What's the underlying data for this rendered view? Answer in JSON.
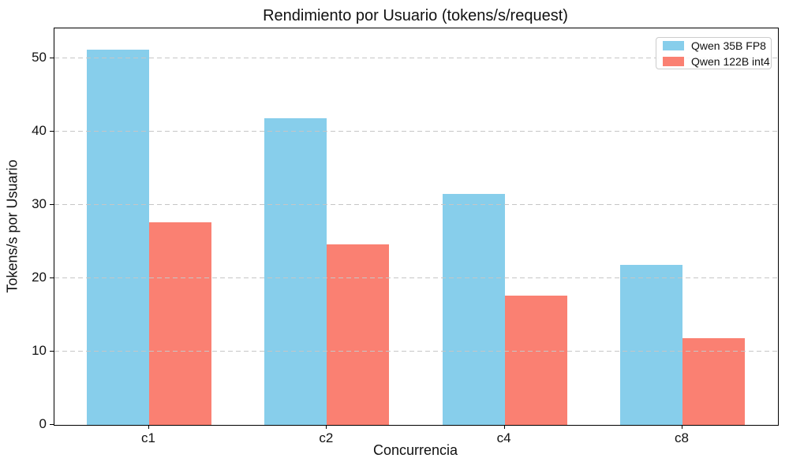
{
  "chart_data": {
    "type": "bar",
    "title": "Rendimiento por Usuario (tokens/s/request)",
    "xlabel": "Concurrencia",
    "ylabel": "Tokens/s por Usuario",
    "categories": [
      "c1",
      "c2",
      "c4",
      "c8"
    ],
    "series": [
      {
        "name": "Qwen 35B FP8",
        "color": "#87CEEB",
        "values": [
          51.2,
          41.8,
          31.5,
          21.8
        ]
      },
      {
        "name": "Qwen 122B int4",
        "color": "#FA8072",
        "values": [
          27.6,
          24.6,
          17.6,
          11.8
        ]
      }
    ],
    "ylim": [
      0,
      54.05
    ],
    "yticks": [
      0,
      10,
      20,
      30,
      40,
      50
    ],
    "grid": "y-dashed-over-bars",
    "gridline_color": "#c6c6c6",
    "legend_position": "upper right",
    "spine_color": "#000000"
  }
}
